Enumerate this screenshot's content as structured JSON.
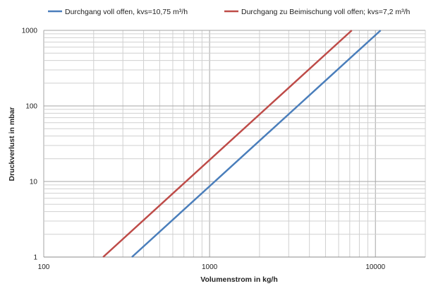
{
  "chart_data": {
    "type": "line",
    "xlabel": "Volumenstrom in kg/h",
    "ylabel": "Druckverlust in mbar",
    "xscale": "log",
    "yscale": "log",
    "xlim": [
      100,
      20000
    ],
    "ylim": [
      1,
      1000
    ],
    "x_ticks": [
      "100",
      "1000",
      "10000"
    ],
    "y_ticks": [
      "1",
      "10",
      "100",
      "1000"
    ],
    "grid": true,
    "legend_position": "top",
    "series": [
      {
        "name": "Durchgang voll offen, kvs=10,75 m³/h",
        "color": "#4a7ebb",
        "x": [
          340,
          1075,
          3400,
          10750
        ],
        "y": [
          1,
          10,
          100,
          1000
        ]
      },
      {
        "name": "Durchgang zu Beimischung voll offen; kvs=7,2 m³/h",
        "color": "#be4b48",
        "x": [
          228,
          720,
          2277,
          7200
        ],
        "y": [
          1,
          10,
          100,
          1000
        ]
      }
    ]
  }
}
